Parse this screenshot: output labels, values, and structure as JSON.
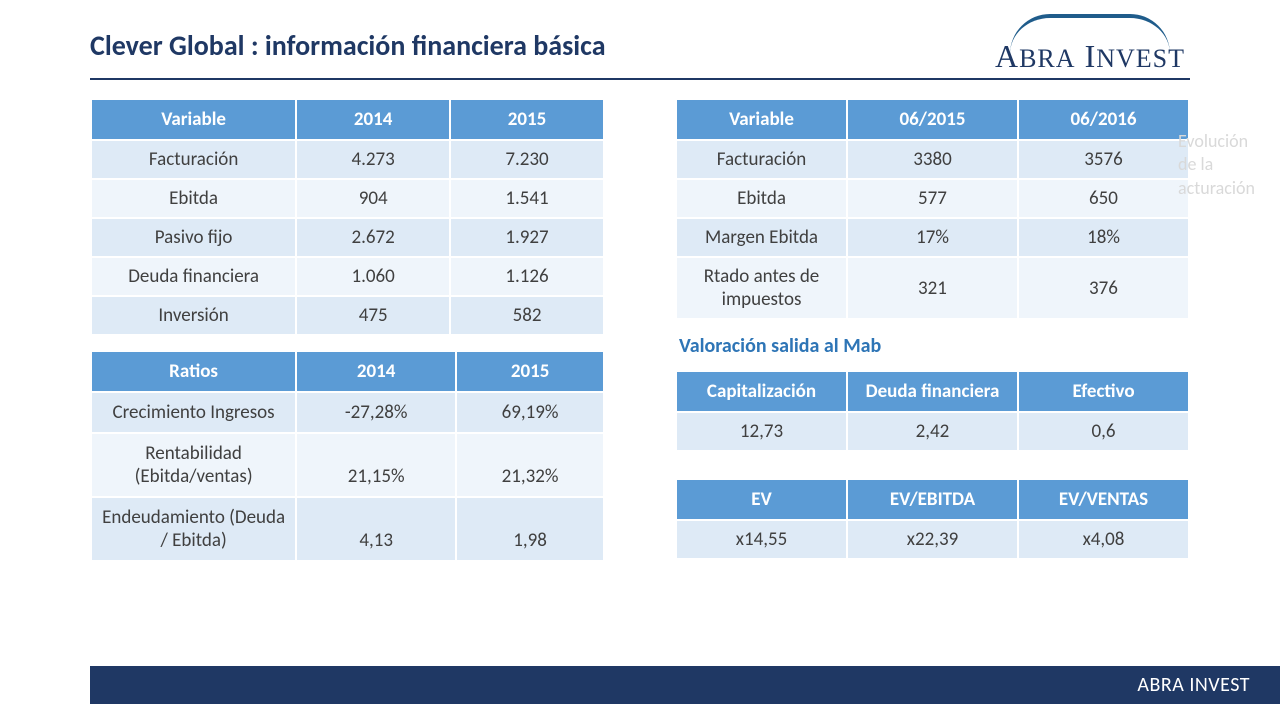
{
  "title": "Clever Global : información financiera básica",
  "logo_text_parts": [
    "A",
    "BRA",
    " I",
    "NVEST"
  ],
  "ghost": "Evolución de la acturación",
  "colors": {
    "header_bg": "#5b9bd5",
    "header_fg": "#ffffff",
    "band_a": "#deeaf6",
    "band_b": "#eff5fb",
    "title_color": "#1f3864",
    "section_color": "#2e75b6",
    "footer_bg": "#1f3864"
  },
  "table_variables": {
    "headers": [
      "Variable",
      "2014",
      "2015"
    ],
    "rows": [
      {
        "label": "Facturación",
        "v1": "4.273",
        "v2": "7.230"
      },
      {
        "label": "Ebitda",
        "v1": "904",
        "v2": "1.541"
      },
      {
        "label": "Pasivo fijo",
        "v1": "2.672",
        "v2": "1.927"
      },
      {
        "label": "Deuda financiera",
        "v1": "1.060",
        "v2": "1.126"
      },
      {
        "label": "Inversión",
        "v1": "475",
        "v2": "582"
      }
    ]
  },
  "table_ratios": {
    "headers": [
      "Ratios",
      "2014",
      "2015"
    ],
    "rows": [
      {
        "label": "Crecimiento Ingresos",
        "v1": "-27,28%",
        "v2": "69,19%"
      },
      {
        "label": "Rentabilidad (Ebitda/ventas)",
        "v1": "21,15%",
        "v2": "21,32%"
      },
      {
        "label": "Endeudamiento (Deuda / Ebitda)",
        "v1": "4,13",
        "v2": "1,98"
      }
    ]
  },
  "table_half": {
    "headers": [
      "Variable",
      "06/2015",
      "06/2016"
    ],
    "rows": [
      {
        "label": "Facturación",
        "v1": "3380",
        "v2": "3576"
      },
      {
        "label": "Ebitda",
        "v1": "577",
        "v2": "650"
      },
      {
        "label": "Margen Ebitda",
        "v1": "17%",
        "v2": "18%"
      },
      {
        "label": "Rtado antes de impuestos",
        "v1": "321",
        "v2": "376"
      }
    ]
  },
  "valoracion_title": "Valoración salida al Mab",
  "table_cap": {
    "headers": [
      "Capitalización",
      "Deuda financiera",
      "Efectivo"
    ],
    "rows": [
      {
        "v0": "12,73",
        "v1": "2,42",
        "v2": "0,6"
      }
    ]
  },
  "table_ev": {
    "headers": [
      "EV",
      "EV/EBITDA",
      "EV/VENTAS"
    ],
    "rows": [
      {
        "v0": "x14,55",
        "v1": "x22,39",
        "v2": "x4,08"
      }
    ]
  },
  "footer": "ABRA INVEST"
}
